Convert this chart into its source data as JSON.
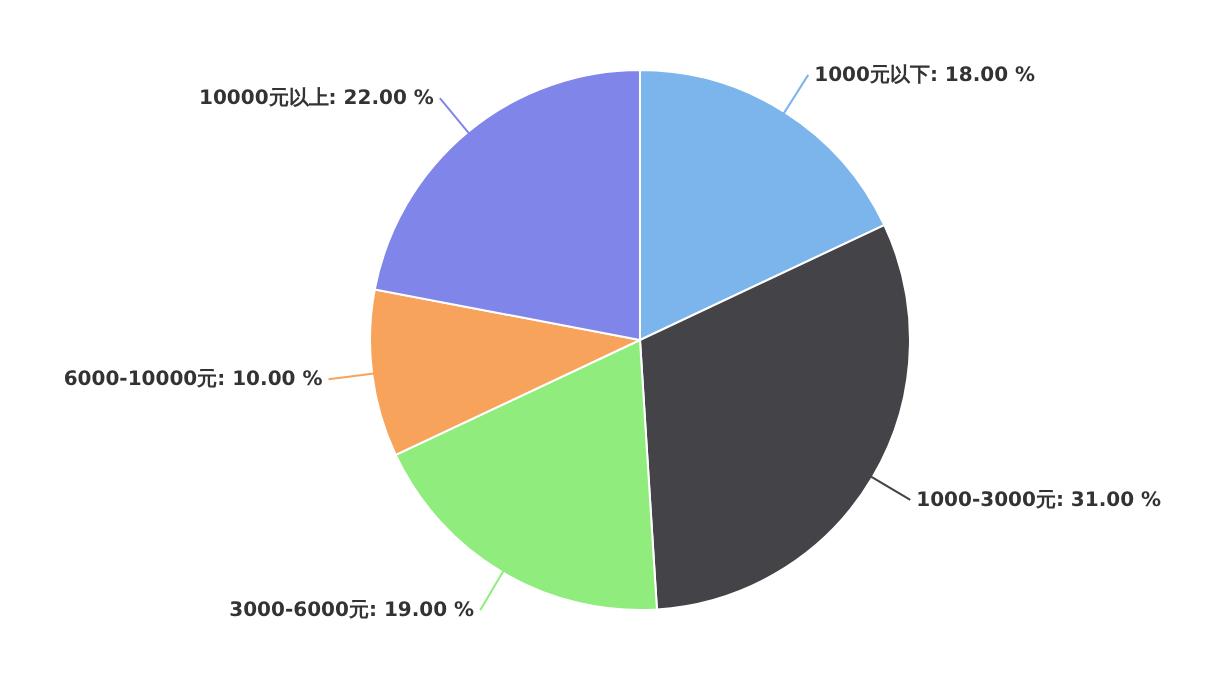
{
  "chart_data": {
    "type": "pie",
    "categories": [
      "1000元以下",
      "1000-3000元",
      "3000-6000元",
      "6000-10000元",
      "10000元以上"
    ],
    "values": [
      18,
      31,
      19,
      10,
      22
    ],
    "value_labels": [
      "18.00 %",
      "31.00 %",
      "19.00 %",
      "10.00 %",
      "22.00 %"
    ],
    "colors": [
      "#7cb5ec",
      "#434348",
      "#90ed7d",
      "#f7a35c",
      "#8085e9"
    ]
  }
}
